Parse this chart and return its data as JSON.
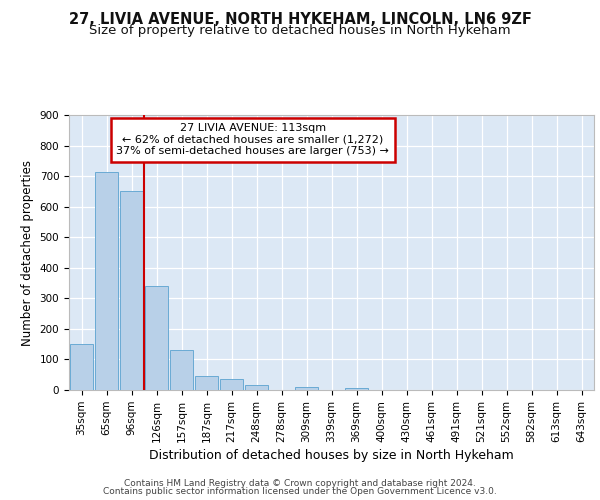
{
  "title1": "27, LIVIA AVENUE, NORTH HYKEHAM, LINCOLN, LN6 9ZF",
  "title2": "Size of property relative to detached houses in North Hykeham",
  "xlabel": "Distribution of detached houses by size in North Hykeham",
  "ylabel": "Number of detached properties",
  "categories": [
    "35sqm",
    "65sqm",
    "96sqm",
    "126sqm",
    "157sqm",
    "187sqm",
    "217sqm",
    "248sqm",
    "278sqm",
    "309sqm",
    "339sqm",
    "369sqm",
    "400sqm",
    "430sqm",
    "461sqm",
    "491sqm",
    "521sqm",
    "552sqm",
    "582sqm",
    "613sqm",
    "643sqm"
  ],
  "values": [
    150,
    715,
    650,
    340,
    130,
    45,
    35,
    15,
    0,
    10,
    0,
    5,
    0,
    0,
    0,
    0,
    0,
    0,
    0,
    0,
    0
  ],
  "bar_color": "#b8d0e8",
  "bar_edge_color": "#6aaad4",
  "bg_color": "#dce8f5",
  "grid_color": "#ffffff",
  "red_line_x": 2.5,
  "red_line_color": "#cc0000",
  "annotation_text": "27 LIVIA AVENUE: 113sqm\n← 62% of detached houses are smaller (1,272)\n37% of semi-detached houses are larger (753) →",
  "annotation_box_edge": "#cc0000",
  "ylim": [
    0,
    900
  ],
  "yticks": [
    0,
    100,
    200,
    300,
    400,
    500,
    600,
    700,
    800,
    900
  ],
  "footer_line1": "Contains HM Land Registry data © Crown copyright and database right 2024.",
  "footer_line2": "Contains public sector information licensed under the Open Government Licence v3.0.",
  "title1_fontsize": 10.5,
  "title2_fontsize": 9.5,
  "xlabel_fontsize": 9,
  "ylabel_fontsize": 8.5,
  "tick_fontsize": 7.5,
  "annotation_fontsize": 8,
  "footer_fontsize": 6.5
}
